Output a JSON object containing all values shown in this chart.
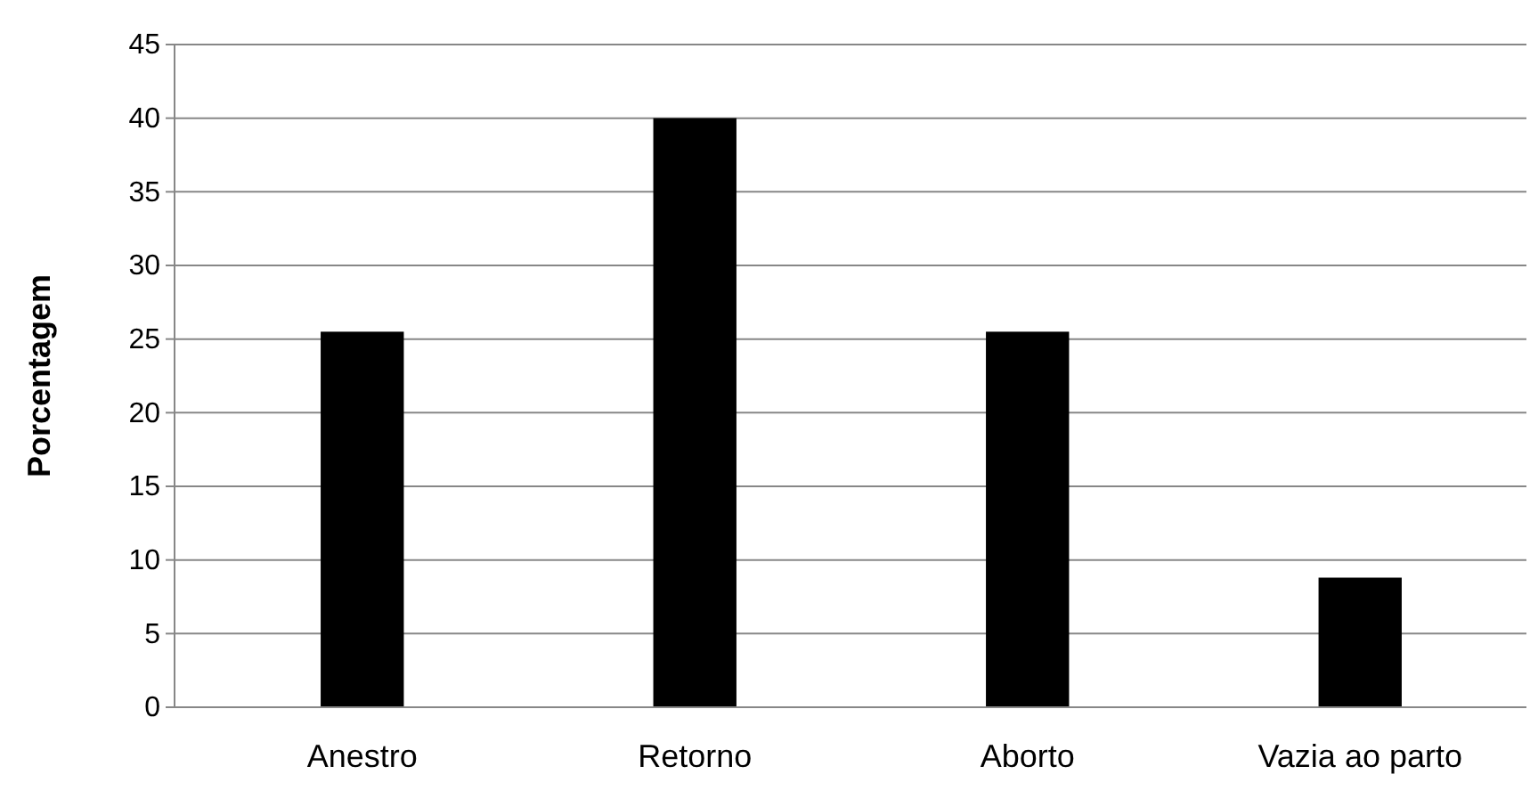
{
  "chart_data": {
    "type": "bar",
    "ylabel": "Porcentagem",
    "categories": [
      "Anestro",
      "Retorno",
      "Aborto",
      "Vazia ao parto"
    ],
    "values": [
      25.5,
      40,
      25.5,
      8.8
    ],
    "color": "#000000",
    "ylim": [
      0,
      45
    ],
    "yticks": [
      0,
      5,
      10,
      15,
      20,
      25,
      30,
      35,
      40,
      45
    ],
    "grid": "y"
  }
}
